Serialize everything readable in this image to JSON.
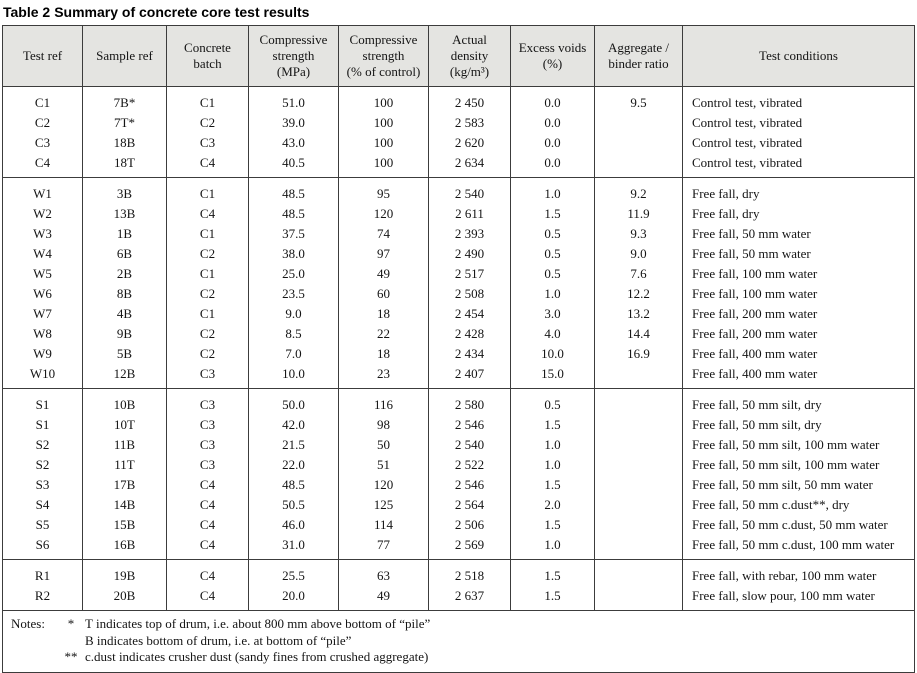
{
  "caption": {
    "label": "Table 2",
    "title": "Summary of concrete core test results"
  },
  "colors": {
    "header_bg": "#e4e4e1",
    "border": "#3c3c3c",
    "text": "#141414"
  },
  "table": {
    "columns": [
      {
        "label": "Test ref"
      },
      {
        "label": "Sample ref"
      },
      {
        "label": "Concrete\nbatch"
      },
      {
        "label": "Compressive\nstrength\n(MPa)"
      },
      {
        "label": "Compressive\nstrength\n(% of control)"
      },
      {
        "label": "Actual\ndensity\n(kg/m³)"
      },
      {
        "label": "Excess voids\n(%)"
      },
      {
        "label": "Aggregate /\nbinder ratio"
      },
      {
        "label": "Test conditions"
      }
    ],
    "groups": [
      {
        "id": "control",
        "rows": [
          [
            "C1",
            "7B*",
            "C1",
            "51.0",
            "100",
            "2 450",
            "0.0",
            "9.5",
            "Control test, vibrated"
          ],
          [
            "C2",
            "7T*",
            "C2",
            "39.0",
            "100",
            "2 583",
            "0.0",
            "",
            "Control test, vibrated"
          ],
          [
            "C3",
            "18B",
            "C3",
            "43.0",
            "100",
            "2 620",
            "0.0",
            "",
            "Control test, vibrated"
          ],
          [
            "C4",
            "18T",
            "C4",
            "40.5",
            "100",
            "2 634",
            "0.0",
            "",
            "Control test, vibrated"
          ]
        ]
      },
      {
        "id": "water",
        "rows": [
          [
            "W1",
            "3B",
            "C1",
            "48.5",
            "95",
            "2 540",
            "1.0",
            "9.2",
            "Free fall, dry"
          ],
          [
            "W2",
            "13B",
            "C4",
            "48.5",
            "120",
            "2 611",
            "1.5",
            "11.9",
            "Free fall, dry"
          ],
          [
            "W3",
            "1B",
            "C1",
            "37.5",
            "74",
            "2 393",
            "0.5",
            "9.3",
            "Free fall, 50 mm water"
          ],
          [
            "W4",
            "6B",
            "C2",
            "38.0",
            "97",
            "2 490",
            "0.5",
            "9.0",
            "Free fall, 50 mm water"
          ],
          [
            "W5",
            "2B",
            "C1",
            "25.0",
            "49",
            "2 517",
            "0.5",
            "7.6",
            "Free fall, 100 mm water"
          ],
          [
            "W6",
            "8B",
            "C2",
            "23.5",
            "60",
            "2 508",
            "1.0",
            "12.2",
            "Free fall, 100 mm water"
          ],
          [
            "W7",
            "4B",
            "C1",
            "9.0",
            "18",
            "2 454",
            "3.0",
            "13.2",
            "Free fall, 200 mm water"
          ],
          [
            "W8",
            "9B",
            "C2",
            "8.5",
            "22",
            "2 428",
            "4.0",
            "14.4",
            "Free fall, 200 mm water"
          ],
          [
            "W9",
            "5B",
            "C2",
            "7.0",
            "18",
            "2 434",
            "10.0",
            "16.9",
            "Free fall, 400 mm water"
          ],
          [
            "W10",
            "12B",
            "C3",
            "10.0",
            "23",
            "2 407",
            "15.0",
            "",
            "Free fall, 400 mm water"
          ]
        ]
      },
      {
        "id": "silt",
        "rows": [
          [
            "S1",
            "10B",
            "C3",
            "50.0",
            "116",
            "2 580",
            "0.5",
            "",
            "Free fall, 50 mm silt, dry"
          ],
          [
            "S1",
            "10T",
            "C3",
            "42.0",
            "98",
            "2 546",
            "1.5",
            "",
            "Free fall, 50 mm silt, dry"
          ],
          [
            "S2",
            "11B",
            "C3",
            "21.5",
            "50",
            "2 540",
            "1.0",
            "",
            "Free fall, 50 mm silt, 100 mm water"
          ],
          [
            "S2",
            "11T",
            "C3",
            "22.0",
            "51",
            "2 522",
            "1.0",
            "",
            "Free fall, 50 mm silt, 100 mm water"
          ],
          [
            "S3",
            "17B",
            "C4",
            "48.5",
            "120",
            "2 546",
            "1.5",
            "",
            "Free fall, 50 mm silt, 50 mm water"
          ],
          [
            "S4",
            "14B",
            "C4",
            "50.5",
            "125",
            "2 564",
            "2.0",
            "",
            "Free fall, 50 mm c.dust**, dry"
          ],
          [
            "S5",
            "15B",
            "C4",
            "46.0",
            "114",
            "2 506",
            "1.5",
            "",
            "Free fall, 50 mm c.dust, 50 mm water"
          ],
          [
            "S6",
            "16B",
            "C4",
            "31.0",
            "77",
            "2 569",
            "1.0",
            "",
            "Free fall, 50 mm c.dust, 100 mm water"
          ]
        ]
      },
      {
        "id": "rebar",
        "rows": [
          [
            "R1",
            "19B",
            "C4",
            "25.5",
            "63",
            "2 518",
            "1.5",
            "",
            "Free fall, with rebar, 100 mm water"
          ],
          [
            "R2",
            "20B",
            "C4",
            "20.0",
            "49",
            "2 637",
            "1.5",
            "",
            "Free fall, slow pour, 100 mm water"
          ]
        ]
      }
    ]
  },
  "notes": {
    "label": "Notes:",
    "lines": [
      {
        "marker": "*",
        "text": "T indicates top of drum, i.e. about 800 mm above bottom of “pile”"
      },
      {
        "marker": "",
        "text": "B indicates bottom of drum, i.e. at bottom of “pile”"
      },
      {
        "marker": "**",
        "text": "c.dust indicates crusher dust (sandy fines from crushed aggregate)"
      }
    ]
  }
}
